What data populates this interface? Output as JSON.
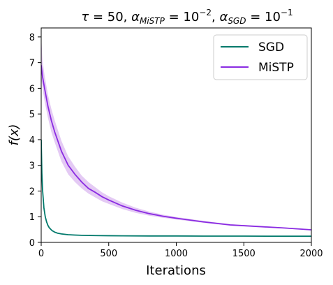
{
  "chart_data": {
    "type": "line",
    "title_parts": {
      "tau_symbol": "τ",
      "tau_eq": " = 50, ",
      "alpha_symbol": "α",
      "sub_mistp": "MiSTP",
      "mistp_eq": " = 10",
      "mistp_exp": "−2",
      "comma": ", ",
      "sub_sgd": "SGD",
      "sgd_eq": " = 10",
      "sgd_exp": "−1"
    },
    "xlabel": "Iterations",
    "ylabel": "f(x)",
    "xlim": [
      0,
      2000
    ],
    "ylim": [
      0,
      8.35
    ],
    "xticks": [
      0,
      500,
      1000,
      1500,
      2000
    ],
    "yticks": [
      0,
      1,
      2,
      3,
      4,
      5,
      6,
      7,
      8
    ],
    "legend_position": "top-right",
    "series": [
      {
        "name": "SGD",
        "color": "#00796b",
        "x": [
          0,
          5,
          10,
          20,
          30,
          40,
          50,
          60,
          80,
          100,
          120,
          150,
          200,
          250,
          300,
          400,
          500,
          600,
          800,
          1000,
          1200,
          1500,
          1800,
          2000
        ],
        "y": [
          4.0,
          2.7,
          2.05,
          1.35,
          1.0,
          0.8,
          0.66,
          0.57,
          0.46,
          0.4,
          0.36,
          0.33,
          0.3,
          0.285,
          0.275,
          0.265,
          0.26,
          0.255,
          0.25,
          0.25,
          0.245,
          0.245,
          0.24,
          0.24
        ]
      },
      {
        "name": "MiSTP",
        "color": "#8a2be2",
        "band_color": "#d9b3f0",
        "x": [
          0,
          10,
          25,
          50,
          75,
          100,
          150,
          200,
          250,
          300,
          350,
          400,
          450,
          500,
          600,
          700,
          800,
          900,
          1000,
          1200,
          1400,
          1600,
          1800,
          2000
        ],
        "y": [
          6.9,
          6.45,
          6.0,
          5.3,
          4.75,
          4.3,
          3.55,
          3.0,
          2.65,
          2.35,
          2.1,
          1.95,
          1.78,
          1.65,
          1.42,
          1.25,
          1.12,
          1.02,
          0.94,
          0.8,
          0.68,
          0.62,
          0.56,
          0.49
        ],
        "lower": [
          6.4,
          6.0,
          5.5,
          4.85,
          4.3,
          3.9,
          3.15,
          2.65,
          2.35,
          2.1,
          1.9,
          1.75,
          1.6,
          1.5,
          1.3,
          1.15,
          1.04,
          0.96,
          0.89,
          0.76,
          0.65,
          0.59,
          0.54,
          0.47
        ],
        "upper": [
          8.0,
          7.1,
          6.5,
          5.75,
          5.2,
          4.75,
          3.95,
          3.35,
          2.95,
          2.6,
          2.35,
          2.15,
          1.95,
          1.8,
          1.55,
          1.35,
          1.2,
          1.08,
          0.99,
          0.84,
          0.71,
          0.65,
          0.58,
          0.51
        ]
      }
    ]
  }
}
